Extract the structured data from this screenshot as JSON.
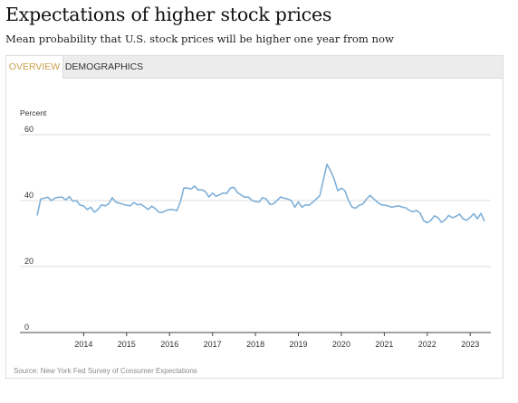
{
  "header": {
    "title": "Expectations of higher stock prices",
    "subtitle": "Mean probability that U.S. stock prices will be higher one year from now"
  },
  "tabs": [
    {
      "label": "OVERVIEW",
      "active": true
    },
    {
      "label": "DEMOGRAPHICS",
      "active": false
    }
  ],
  "colors": {
    "line": "#7fb0d8",
    "active_tab": "#c9a04a",
    "grid": "#dcdcdc"
  },
  "footer": {
    "source": "Source: New York Fed Survey of Consumer Expectations"
  },
  "chart_data": {
    "type": "line",
    "ylabel": "Percent",
    "ylim": [
      0,
      60
    ],
    "yticks": [
      0,
      20,
      40,
      60
    ],
    "xticks": [
      "2014",
      "2015",
      "2016",
      "2017",
      "2018",
      "2019",
      "2020",
      "2021",
      "2022",
      "2023"
    ],
    "xlim": [
      "2013-06",
      "2023-12"
    ],
    "grid": true,
    "series": [
      {
        "x": [
          "2013-06",
          "2013-07",
          "2013-08",
          "2013-09",
          "2013-10",
          "2013-11",
          "2013-12",
          "2014-01",
          "2014-02",
          "2014-03",
          "2014-04",
          "2014-05",
          "2014-06",
          "2014-07",
          "2014-08",
          "2014-09",
          "2014-10",
          "2014-11",
          "2014-12",
          "2015-01",
          "2015-02",
          "2015-03",
          "2015-04",
          "2015-05",
          "2015-06",
          "2015-07",
          "2015-08",
          "2015-09",
          "2015-10",
          "2015-11",
          "2015-12",
          "2016-01",
          "2016-02",
          "2016-03",
          "2016-04",
          "2016-05",
          "2016-06",
          "2016-07",
          "2016-08",
          "2016-09",
          "2016-10",
          "2016-11",
          "2016-12",
          "2017-01",
          "2017-02",
          "2017-03",
          "2017-04",
          "2017-05",
          "2017-06",
          "2017-07",
          "2017-08",
          "2017-09",
          "2017-10",
          "2017-11",
          "2017-12",
          "2018-01",
          "2018-02",
          "2018-03",
          "2018-04",
          "2018-05",
          "2018-06",
          "2018-07",
          "2018-08",
          "2018-09",
          "2018-10",
          "2018-11",
          "2018-12",
          "2019-01",
          "2019-02",
          "2019-03",
          "2019-04",
          "2019-05",
          "2019-06",
          "2019-07",
          "2019-08",
          "2019-09",
          "2019-10",
          "2019-11",
          "2019-12",
          "2020-01",
          "2020-02",
          "2020-03",
          "2020-04",
          "2020-05",
          "2020-06",
          "2020-07",
          "2020-08",
          "2020-09",
          "2020-10",
          "2020-11",
          "2020-12",
          "2021-01",
          "2021-02",
          "2021-03",
          "2021-04",
          "2021-05",
          "2021-06",
          "2021-07",
          "2021-08",
          "2021-09",
          "2021-10",
          "2021-11",
          "2021-12",
          "2022-01",
          "2022-02",
          "2022-03",
          "2022-04",
          "2022-05",
          "2022-06",
          "2022-07",
          "2022-08",
          "2022-09",
          "2022-10",
          "2022-11",
          "2022-12",
          "2023-01",
          "2023-02",
          "2023-03",
          "2023-04",
          "2023-05",
          "2023-06",
          "2023-07",
          "2023-08",
          "2023-09",
          "2023-10",
          "2023-11"
        ],
        "values": [
          35.5,
          40.5,
          40.7,
          41.0,
          40.0,
          40.8,
          41.0,
          41.0,
          40.2,
          41.2,
          39.8,
          40.0,
          38.6,
          38.4,
          37.3,
          38.0,
          36.5,
          37.3,
          38.7,
          38.4,
          39.0,
          40.9,
          39.5,
          39.2,
          38.9,
          38.6,
          38.4,
          39.4,
          38.7,
          38.9,
          38.1,
          37.3,
          38.3,
          37.6,
          36.5,
          36.4,
          37.0,
          37.3,
          37.3,
          36.9,
          39.5,
          43.8,
          43.8,
          43.5,
          44.4,
          43.2,
          43.3,
          42.7,
          41.1,
          42.3,
          41.3,
          41.8,
          42.3,
          42.2,
          43.8,
          44.0,
          42.4,
          41.7,
          41.0,
          41.1,
          40.1,
          39.7,
          39.6,
          40.9,
          40.5,
          38.9,
          39.0,
          40.0,
          41.1,
          40.7,
          40.5,
          40.0,
          38.0,
          39.6,
          38.0,
          38.7,
          38.6,
          39.5,
          40.5,
          41.5,
          46.5,
          51.0,
          49.0,
          46.5,
          43.0,
          43.8,
          43.0,
          40.0,
          38.0,
          37.7,
          38.6,
          39.0,
          40.4,
          41.6,
          40.6,
          39.6,
          38.8,
          38.6,
          38.4,
          38.0,
          38.2,
          38.4,
          38.0,
          37.8,
          37.0,
          36.6,
          37.0,
          36.2,
          33.9,
          33.3,
          34.0,
          35.4,
          34.8,
          33.4,
          34.2,
          35.5,
          34.8,
          35.2,
          35.9,
          34.5,
          34.0,
          34.9,
          36.0,
          34.5,
          36.1,
          33.7
        ]
      }
    ]
  }
}
